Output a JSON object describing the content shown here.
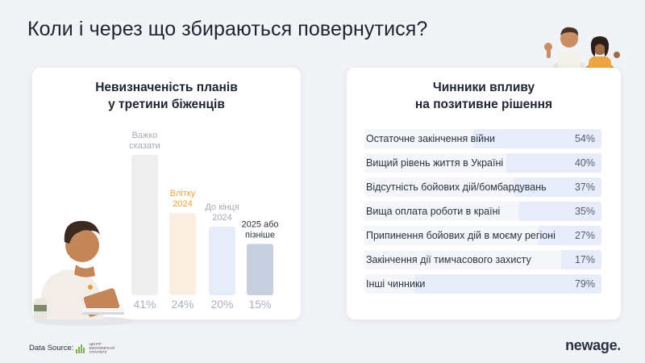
{
  "header": {
    "title": "Коли і через що збираються повернутися?"
  },
  "left_card": {
    "title_line1": "Невизначеність планів",
    "title_line2": "у третини біженців"
  },
  "right_card": {
    "title_line1": "Чинники впливу",
    "title_line2": "на позитивне рішення"
  },
  "chart_data": [
    {
      "type": "bar",
      "title": "Невизначеність планів у третини біженців",
      "categories": [
        [
          "Важко",
          "сказати"
        ],
        [
          "Влітку",
          "2024"
        ],
        [
          "До кінця",
          "2024"
        ],
        [
          "2025 або",
          "пізніше"
        ]
      ],
      "values": [
        41,
        24,
        20,
        15
      ],
      "value_labels": [
        "41%",
        "24%",
        "20%",
        "15%"
      ],
      "colors": [
        "#eeeeee",
        "#fbeee0",
        "#e6edf8",
        "#c7cfde"
      ],
      "label_colors": [
        "#a3a9b3",
        "#f0a03c",
        "#a3a9b3",
        "#2b3140"
      ],
      "ylim": [
        0,
        41
      ],
      "grid": false,
      "legend": "none"
    },
    {
      "type": "bar",
      "orientation": "horizontal",
      "title": "Чинники впливу на позитивне рішення",
      "categories": [
        "Остаточне закінчення війни",
        "Вищий рівень життя в Україні",
        "Відсутність бойових дій/бомбардувань",
        "Вища оплата роботи в країні",
        "Припинення бойових дій в моєму регіоні",
        "Закінчення дії тимчасового захисту",
        "Інші чинники"
      ],
      "values": [
        54,
        40,
        37,
        35,
        27,
        17,
        79
      ],
      "value_labels": [
        "54%",
        "40%",
        "37%",
        "35%",
        "27%",
        "17%",
        "79%"
      ],
      "xlim": [
        0,
        100
      ],
      "grid": false,
      "legend": "none"
    }
  ],
  "footer": {
    "source_label": "Data Source:",
    "source_logo_text": "ЦЕНТР ЕКОНОМІЧНОЇ СТРАТЕГІЇ",
    "brand": "newage",
    "brand_dot": "."
  },
  "colors": {
    "background": "#f1f3f7",
    "card": "#ffffff",
    "accent_orange": "#f0a03c",
    "factor_fill": "#e7ecf8"
  }
}
